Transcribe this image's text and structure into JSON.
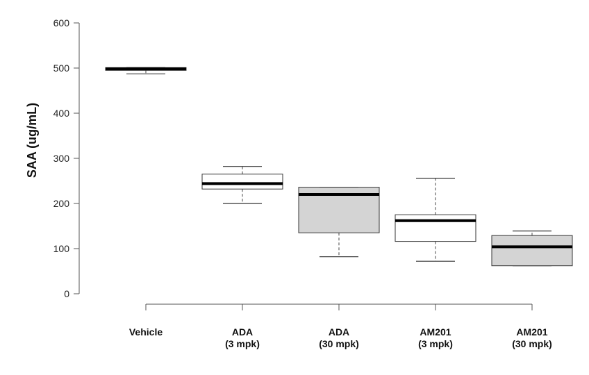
{
  "chart_data": {
    "type": "box",
    "title": "",
    "xlabel": "",
    "ylabel": "SAA (ug/mL)",
    "ylim": [
      0,
      600
    ],
    "yticks": [
      0,
      100,
      200,
      300,
      400,
      500,
      600
    ],
    "grid": false,
    "legend": "none",
    "categories": [
      {
        "line1": "Vehicle",
        "line2": ""
      },
      {
        "line1": "ADA",
        "line2": "(3 mpk)"
      },
      {
        "line1": "ADA",
        "line2": "(30 mpk)"
      },
      {
        "line1": "AM201",
        "line2": "(3 mpk)"
      },
      {
        "line1": "AM201",
        "line2": "(30 mpk)"
      }
    ],
    "boxes": [
      {
        "min": 487,
        "q1": 495,
        "median": 498,
        "q3": 501,
        "max": 501,
        "fill": "#ffffff"
      },
      {
        "min": 200,
        "q1": 232,
        "median": 244,
        "q3": 265,
        "max": 282,
        "fill": "#ffffff"
      },
      {
        "min": 82,
        "q1": 135,
        "median": 220,
        "q3": 236,
        "max": 236,
        "fill": "#d4d4d4"
      },
      {
        "min": 72,
        "q1": 116,
        "median": 162,
        "q3": 175,
        "max": 256,
        "fill": "#ffffff"
      },
      {
        "min": 62,
        "q1": 62,
        "median": 104,
        "q3": 129,
        "max": 139,
        "fill": "#d4d4d4"
      }
    ]
  }
}
